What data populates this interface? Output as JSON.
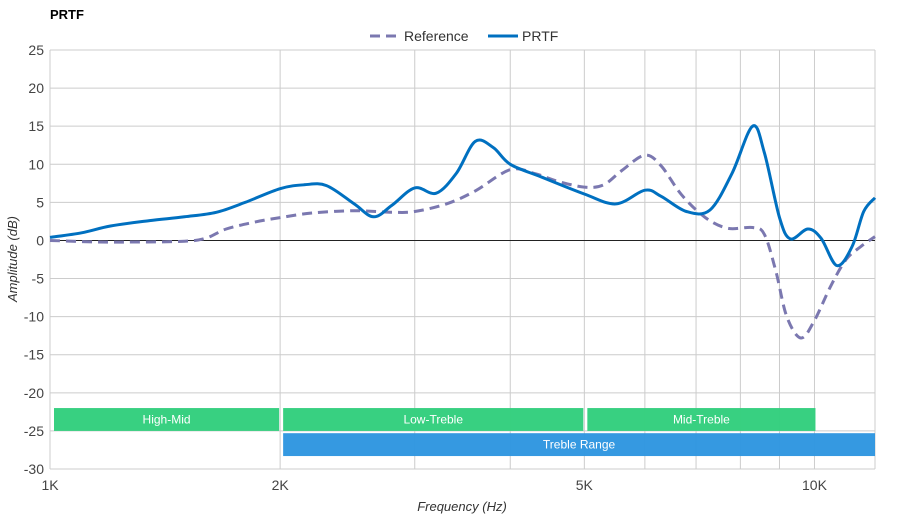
{
  "chart_data": {
    "type": "line",
    "title": "PRTF",
    "xlabel": "Frequency (Hz)",
    "ylabel": "Amplitude (dB)",
    "x_scale": "log",
    "xlim": [
      1000,
      12000
    ],
    "ylim": [
      -30,
      25
    ],
    "grid": true,
    "legend_position": "top-center",
    "x_ticks": [
      {
        "value": 1000,
        "label": "1K"
      },
      {
        "value": 2000,
        "label": "2K"
      },
      {
        "value": 5000,
        "label": "5K"
      },
      {
        "value": 10000,
        "label": "10K"
      }
    ],
    "x_gridlines": [
      1000,
      2000,
      3000,
      4000,
      5000,
      6000,
      7000,
      8000,
      9000,
      10000,
      12000
    ],
    "y_ticks": [
      25,
      20,
      15,
      10,
      5,
      0,
      -5,
      -10,
      -15,
      -20,
      -25,
      -30
    ],
    "series": [
      {
        "name": "Reference",
        "style": "dashed",
        "color": "#7b78b0",
        "points": [
          [
            1000,
            0
          ],
          [
            1150,
            -0.2
          ],
          [
            1300,
            -0.2
          ],
          [
            1500,
            -0.1
          ],
          [
            1600,
            0.3
          ],
          [
            1700,
            1.5
          ],
          [
            1850,
            2.4
          ],
          [
            2000,
            3.0
          ],
          [
            2200,
            3.6
          ],
          [
            2500,
            3.9
          ],
          [
            2800,
            3.7
          ],
          [
            3000,
            3.8
          ],
          [
            3300,
            4.8
          ],
          [
            3600,
            6.5
          ],
          [
            4000,
            9.3
          ],
          [
            4300,
            8.8
          ],
          [
            4600,
            7.8
          ],
          [
            5000,
            7.0
          ],
          [
            5300,
            7.3
          ],
          [
            5600,
            9.2
          ],
          [
            6000,
            11.2
          ],
          [
            6300,
            9.8
          ],
          [
            6700,
            6.0
          ],
          [
            7200,
            3.0
          ],
          [
            7700,
            1.6
          ],
          [
            8300,
            1.7
          ],
          [
            8600,
            0.8
          ],
          [
            8900,
            -4.0
          ],
          [
            9200,
            -10.0
          ],
          [
            9600,
            -12.8
          ],
          [
            10000,
            -10.5
          ],
          [
            10500,
            -6.0
          ],
          [
            11000,
            -2.5
          ],
          [
            11500,
            -0.8
          ],
          [
            12000,
            0.5
          ]
        ]
      },
      {
        "name": "PRTF",
        "style": "solid",
        "color": "#0070c0",
        "points": [
          [
            1000,
            0.4
          ],
          [
            1100,
            1.0
          ],
          [
            1200,
            1.9
          ],
          [
            1350,
            2.6
          ],
          [
            1500,
            3.1
          ],
          [
            1650,
            3.7
          ],
          [
            1800,
            5.0
          ],
          [
            2000,
            6.8
          ],
          [
            2150,
            7.3
          ],
          [
            2300,
            7.2
          ],
          [
            2500,
            4.8
          ],
          [
            2650,
            3.1
          ],
          [
            2800,
            4.6
          ],
          [
            3000,
            6.9
          ],
          [
            3200,
            6.2
          ],
          [
            3400,
            8.8
          ],
          [
            3600,
            13.0
          ],
          [
            3800,
            12.2
          ],
          [
            4000,
            10.0
          ],
          [
            4400,
            8.3
          ],
          [
            5000,
            6.1
          ],
          [
            5500,
            4.8
          ],
          [
            6000,
            6.6
          ],
          [
            6300,
            5.8
          ],
          [
            6800,
            3.8
          ],
          [
            7300,
            4.0
          ],
          [
            7800,
            8.8
          ],
          [
            8300,
            15.0
          ],
          [
            8600,
            11.5
          ],
          [
            9000,
            3.0
          ],
          [
            9300,
            0.2
          ],
          [
            9800,
            1.5
          ],
          [
            10200,
            0.3
          ],
          [
            10700,
            -3.3
          ],
          [
            11200,
            -0.8
          ],
          [
            11600,
            3.8
          ],
          [
            12000,
            5.6
          ]
        ]
      }
    ],
    "bands": [
      {
        "label": "High-Mid",
        "from": 1000,
        "to": 2000,
        "color": "#34cf7e",
        "row": 0
      },
      {
        "label": "Low-Treble",
        "from": 2000,
        "to": 5000,
        "color": "#34cf7e",
        "row": 0
      },
      {
        "label": "Mid-Treble",
        "from": 5000,
        "to": 10000,
        "color": "#34cf7e",
        "row": 0
      },
      {
        "label": "Treble Range",
        "from": 2000,
        "to": 12000,
        "color": "#3197e0",
        "row": 1
      }
    ]
  }
}
